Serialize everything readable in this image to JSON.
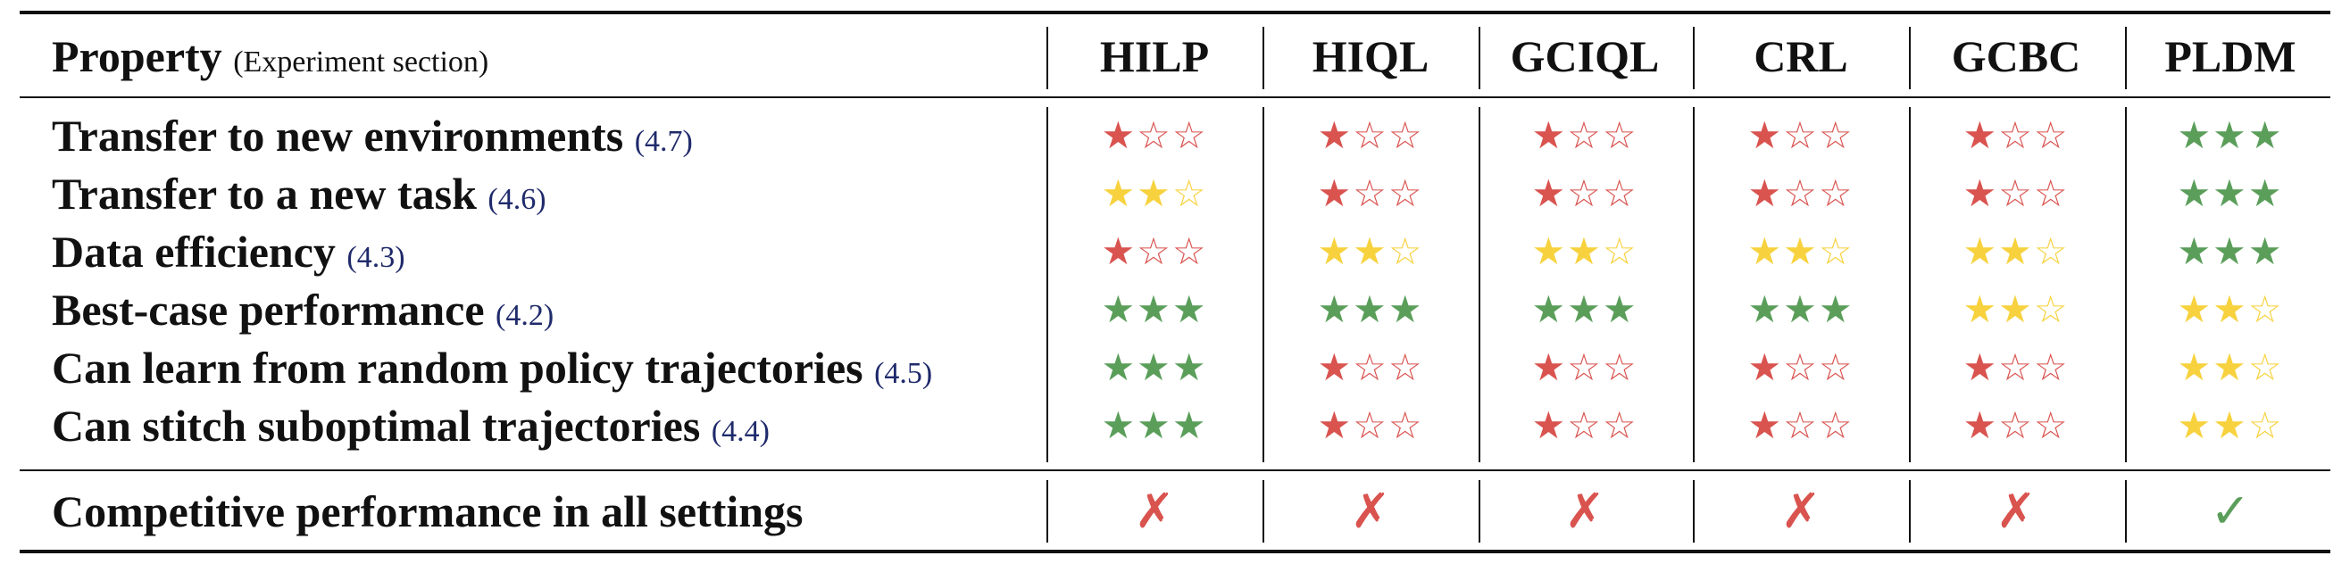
{
  "header": {
    "property_label": "Property",
    "property_sublabel": "(Experiment section)",
    "methods": [
      "HILP",
      "HIQL",
      "GCIQL",
      "CRL",
      "GCBC",
      "PLDM"
    ]
  },
  "colors": {
    "red": "#d9534f",
    "yellow": "#f7d23e",
    "green": "#5a9e5a",
    "ref": "#1f2a6b"
  },
  "icons": {
    "filled_star": "★",
    "empty_star": "☆",
    "cross": "✗",
    "check": "✓"
  },
  "rows": [
    {
      "label": "Transfer to new environments",
      "ref": "(4.7)",
      "ratings": [
        1,
        1,
        1,
        1,
        1,
        3
      ]
    },
    {
      "label": "Transfer to a new task",
      "ref": "(4.6)",
      "ratings": [
        2,
        1,
        1,
        1,
        1,
        3
      ]
    },
    {
      "label": "Data efficiency",
      "ref": "(4.3)",
      "ratings": [
        1,
        2,
        2,
        2,
        2,
        3
      ]
    },
    {
      "label": "Best-case performance",
      "ref": "(4.2)",
      "ratings": [
        3,
        3,
        3,
        3,
        2,
        2
      ]
    },
    {
      "label": "Can learn from random policy trajectories",
      "ref": "(4.5)",
      "ratings": [
        3,
        1,
        1,
        1,
        1,
        2
      ]
    },
    {
      "label": "Can stitch suboptimal trajectories",
      "ref": "(4.4)",
      "ratings": [
        3,
        1,
        1,
        1,
        1,
        2
      ]
    }
  ],
  "summary": {
    "label": "Competitive performance in all settings",
    "values": [
      false,
      false,
      false,
      false,
      false,
      true
    ]
  }
}
